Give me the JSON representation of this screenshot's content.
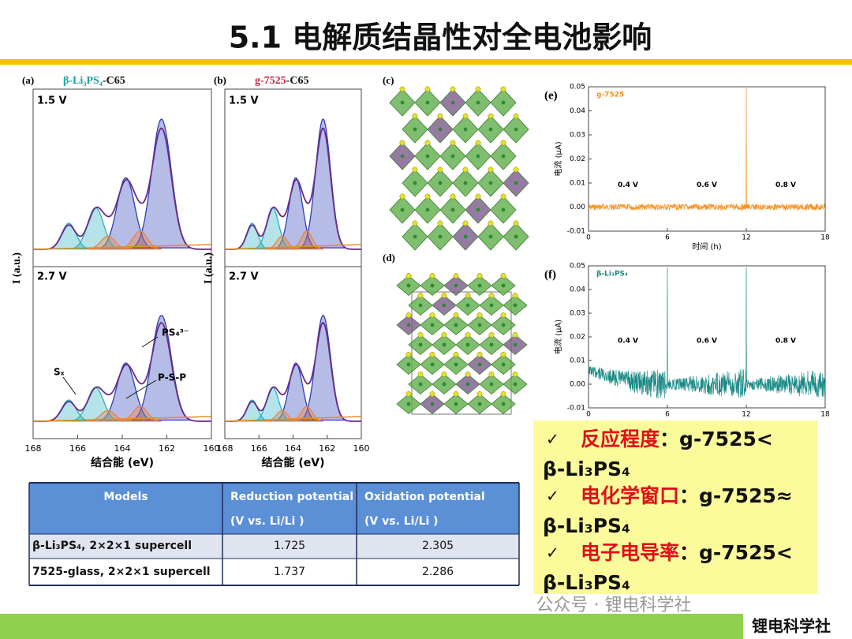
{
  "title": "5.1 电解质结晶性对全电池影响",
  "panels": {
    "a": {
      "label": "(a)",
      "material": "β-Li₃PS₄",
      "suffix": "-C65",
      "top_voltage": "1.5 V",
      "bottom_voltage": "2.7 V",
      "y_label": "I (a.u.)",
      "x_ticks": [
        "168",
        "166",
        "164",
        "162",
        "160"
      ],
      "x_label": "结合能 (eV)",
      "annotations": [
        "PS₄³⁻",
        "Sₓ",
        "P-S-P"
      ]
    },
    "b": {
      "label": "(b)",
      "material": "g-7525",
      "suffix": "-C65",
      "top_voltage": "1.5 V",
      "bottom_voltage": "2.7 V",
      "y_label": "I (a.u.)",
      "x_ticks": [
        "168",
        "166",
        "164",
        "162",
        "160"
      ],
      "x_label": "结合能 (eV)"
    },
    "c": {
      "label": "(c)"
    },
    "d": {
      "label": "(d)"
    },
    "e": {
      "label": "(e)",
      "legend": "g-7525",
      "y_label": "电流 (μA)",
      "y_ticks": [
        "0.05",
        "0.04",
        "0.03",
        "0.02",
        "0.01",
        "0.00",
        "-0.01"
      ],
      "x_ticks": [
        "0",
        "6",
        "12",
        "18"
      ],
      "x_label": "时间 (h)",
      "annotations": [
        "0.4 V",
        "0.6 V",
        "0.8 V"
      ]
    },
    "f": {
      "label": "(f)",
      "legend": "β-Li₃PS₄",
      "y_label": "电流 (μA)",
      "y_ticks": [
        "0.05",
        "0.04",
        "0.03",
        "0.02",
        "0.01",
        "0.00",
        "-0.01"
      ],
      "x_ticks": [
        "0",
        "6",
        "12",
        "18"
      ],
      "annotations": [
        "0.4 V",
        "0.6 V",
        "0.8 V"
      ]
    }
  },
  "table": {
    "header": [
      [
        "Models"
      ],
      [
        "Reduction potential",
        "(V vs. Li/Li )"
      ],
      [
        "Oxidation potential",
        "(V vs. Li/Li )"
      ]
    ],
    "rows": [
      [
        "β-Li₃PS₄, 2×2×1 supercell",
        "1.725",
        "2.305"
      ],
      [
        "7525-glass, 2×2×1 supercell",
        "1.737",
        "2.286"
      ]
    ]
  },
  "conclusions": {
    "bullet": "✓",
    "items": [
      {
        "term": "反应程度",
        "relation": "：g-7525<",
        "material": "β-Li₃PS₄"
      },
      {
        "term": "电化学窗口",
        "relation": "：g-7525≈",
        "material": "β-Li₃PS₄"
      },
      {
        "term": "电子电导率",
        "relation": "：g-7525<",
        "material": "β-Li₃PS₄"
      }
    ]
  },
  "watermark": "公众号 · 锂电科学社",
  "footer": "锂电科学社"
}
